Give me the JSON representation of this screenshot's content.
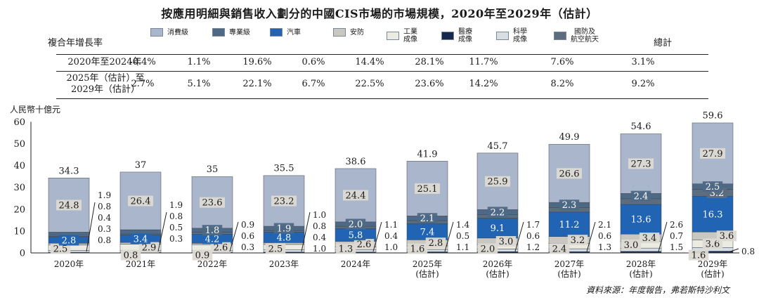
{
  "chart_data": {
    "type": "bar",
    "title": "按應用明細與銷售收入劃分的中國CIS市場的市場規模，2020年至2029年（估計）",
    "ylabel": "人民幣十億元",
    "xlabel": "",
    "ylim": [
      0,
      60
    ],
    "yticks": [
      0,
      10,
      20,
      30,
      40,
      50,
      60
    ],
    "categories": [
      "2020年",
      "2021年",
      "2022年",
      "2023年",
      "2024年",
      "2025年\n(估計)",
      "2026年\n(估計)",
      "2027年\n(估計)",
      "2028年\n(估計)",
      "2029年\n(估計)"
    ],
    "series": [
      {
        "name": "醫療\n成像",
        "color": "#14294d",
        "values": [
          0.3,
          0.3,
          0.3,
          0.4,
          0.4,
          0.5,
          0.6,
          0.6,
          0.7,
          0.8
        ]
      },
      {
        "name": "科學\n成像",
        "color": "#d8dde6",
        "values": [
          0.8,
          0.8,
          0.9,
          1.0,
          1.0,
          1.1,
          1.2,
          1.3,
          1.5,
          1.6
        ]
      },
      {
        "name": "工業\n成像",
        "color": "#ecebe2",
        "values": [
          2.5,
          2.9,
          2.6,
          2.5,
          1.3,
          1.6,
          2.0,
          2.4,
          3.0,
          3.6
        ]
      },
      {
        "name": "安防",
        "color": "#c9c8c0",
        "values": [
          0.8,
          0.8,
          0.6,
          0.8,
          2.6,
          2.8,
          3.0,
          3.2,
          3.4,
          3.6
        ]
      },
      {
        "name": "汽車",
        "color": "#2164b3",
        "values": [
          2.8,
          3.4,
          4.2,
          4.8,
          5.8,
          7.4,
          9.1,
          11.2,
          13.6,
          16.3
        ]
      },
      {
        "name": "國防及\n航空航天",
        "color": "#5c6d80",
        "values": [
          0.4,
          0.5,
          0.9,
          0.8,
          1.1,
          1.4,
          1.7,
          2.1,
          2.6,
          3.2
        ]
      },
      {
        "name": "專業級",
        "color": "#4e6985",
        "values": [
          1.9,
          1.9,
          1.8,
          1.9,
          2.0,
          2.1,
          2.2,
          2.3,
          2.4,
          2.5
        ]
      },
      {
        "name": "消費級",
        "color": "#aab6cb",
        "values": [
          24.8,
          26.4,
          23.6,
          23.2,
          24.4,
          25.1,
          25.9,
          26.6,
          27.3,
          27.9
        ]
      }
    ],
    "totals": [
      34.3,
      37.0,
      35.0,
      35.5,
      38.6,
      41.9,
      45.7,
      49.9,
      54.6,
      59.6
    ],
    "segment_labels": [
      [
        {
          "s": 2,
          "t": "2.5"
        },
        {
          "s": 4,
          "t": "2.8"
        },
        {
          "s": 7,
          "t": "24.8"
        }
      ],
      [
        {
          "s": 1,
          "t": "0.8"
        },
        {
          "s": 2,
          "t": "2.9"
        },
        {
          "s": 4,
          "t": "3.4"
        },
        {
          "s": 7,
          "t": "26.4"
        }
      ],
      [
        {
          "s": 1,
          "t": "0.9"
        },
        {
          "s": 2,
          "t": "2.6"
        },
        {
          "s": 4,
          "t": "4.2"
        },
        {
          "s": 6,
          "t": "1.8"
        },
        {
          "s": 7,
          "t": "23.6"
        }
      ],
      [
        {
          "s": 2,
          "t": "2.5"
        },
        {
          "s": 4,
          "t": "4.8"
        },
        {
          "s": 6,
          "t": "1.9"
        },
        {
          "s": 7,
          "t": "23.2"
        }
      ],
      [
        {
          "s": 2,
          "t": "1.3"
        },
        {
          "s": 3,
          "t": "2.6"
        },
        {
          "s": 4,
          "t": "5.8"
        },
        {
          "s": 6,
          "t": "2.0"
        },
        {
          "s": 7,
          "t": "24.4"
        }
      ],
      [
        {
          "s": 2,
          "t": "1.6"
        },
        {
          "s": 3,
          "t": "2.8"
        },
        {
          "s": 4,
          "t": "7.4"
        },
        {
          "s": 6,
          "t": "2.1"
        },
        {
          "s": 7,
          "t": "25.1"
        }
      ],
      [
        {
          "s": 2,
          "t": "2.0"
        },
        {
          "s": 3,
          "t": "3.0"
        },
        {
          "s": 4,
          "t": "9.1"
        },
        {
          "s": 6,
          "t": "2.2"
        },
        {
          "s": 7,
          "t": "25.9"
        }
      ],
      [
        {
          "s": 2,
          "t": "2.4"
        },
        {
          "s": 3,
          "t": "3.2"
        },
        {
          "s": 4,
          "t": "11.2"
        },
        {
          "s": 6,
          "t": "2.3"
        },
        {
          "s": 7,
          "t": "26.6"
        }
      ],
      [
        {
          "s": 2,
          "t": "3.0"
        },
        {
          "s": 3,
          "t": "3.4"
        },
        {
          "s": 4,
          "t": "13.6"
        },
        {
          "s": 6,
          "t": "2.4"
        },
        {
          "s": 7,
          "t": "27.3"
        }
      ],
      [
        {
          "s": 1,
          "t": "1.6"
        },
        {
          "s": 2,
          "t": "3.6"
        },
        {
          "s": 3,
          "t": "3.6"
        },
        {
          "s": 4,
          "t": "16.3"
        },
        {
          "s": 5,
          "t": "3.2"
        },
        {
          "s": 6,
          "t": "2.5"
        },
        {
          "s": 7,
          "t": "27.9"
        }
      ]
    ],
    "side_labels": [
      [
        "1.9",
        "0.8",
        "0.4",
        "0.3",
        "0.8"
      ],
      [
        "1.9",
        "0.8",
        "0.5",
        "0.3"
      ],
      [
        "0.9",
        "0.6",
        "0.3"
      ],
      [
        "1.0",
        "0.8",
        "0.4",
        "1.0"
      ],
      [
        "1.1",
        "0.4",
        "1.0"
      ],
      [
        "1.4",
        "0.5",
        "1.1"
      ],
      [
        "1.7",
        "0.6",
        "1.2"
      ],
      [
        "2.1",
        "0.6",
        "1.3"
      ],
      [
        "2.6",
        "0.7",
        "1.5"
      ],
      [
        "0.8"
      ]
    ]
  },
  "legend": [
    {
      "label": "消費級",
      "color": "#aab6cb"
    },
    {
      "label": "專業級",
      "color": "#4e6985"
    },
    {
      "label": "汽車",
      "color": "#2164b3"
    },
    {
      "label": "安防",
      "color": "#c9c8c0"
    },
    {
      "label": "工業\n成像",
      "color": "#ecebe2"
    },
    {
      "label": "醫療\n成像",
      "color": "#14294d"
    },
    {
      "label": "科學\n成像",
      "color": "#d8dde6"
    },
    {
      "label": "國防及\n航空航天",
      "color": "#5c6d80"
    }
  ],
  "cagr_table": {
    "header_label": "複合年增長率",
    "total_header": "總計",
    "rows": [
      {
        "period": "2020年至2024年",
        "values": [
          "-0.4%",
          "1.1%",
          "19.6%",
          "0.6%",
          "14.4%",
          "28.1%",
          "11.7%",
          "7.6%",
          "3.1%"
        ]
      },
      {
        "period": "2025年（估計）至\n2029年（估計）",
        "values": [
          "2.7%",
          "5.1%",
          "22.1%",
          "6.7%",
          "22.5%",
          "23.6%",
          "14.2%",
          "8.2%",
          "9.2%"
        ]
      }
    ]
  },
  "source_note": "資料來源：年度報告，弗若斯特沙利文"
}
